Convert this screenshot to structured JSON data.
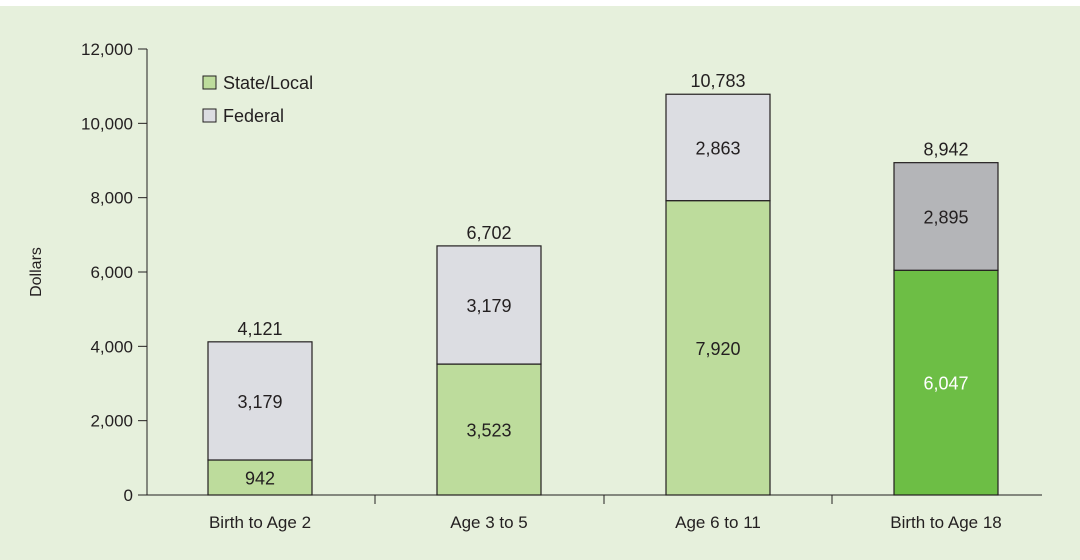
{
  "chart_data": {
    "type": "bar",
    "stacked": true,
    "title": "",
    "xlabel": "",
    "ylabel": "Dollars",
    "ylim": [
      0,
      12000
    ],
    "yticks": [
      0,
      2000,
      4000,
      6000,
      8000,
      10000,
      12000
    ],
    "ytick_labels": [
      "0",
      "2,000",
      "4,000",
      "6,000",
      "8,000",
      "10,000",
      "12,000"
    ],
    "grid": false,
    "legend": {
      "position": "top-left",
      "entries": [
        "State/Local",
        "Federal"
      ]
    },
    "categories": [
      "Birth to Age 2",
      "Age 3 to 5",
      "Age 6 to 11",
      "Birth to Age 18"
    ],
    "series": [
      {
        "name": "State/Local",
        "values": [
          942,
          3523,
          7920,
          6047
        ],
        "labels": [
          "942",
          "3,523",
          "7,920",
          "6,047"
        ],
        "color": "#bddc9c",
        "highlight_color": "#6dbe45"
      },
      {
        "name": "Federal",
        "values": [
          3179,
          3179,
          2863,
          2895
        ],
        "labels": [
          "3,179",
          "3,179",
          "2,863",
          "2,895"
        ],
        "color": "#dcdde2",
        "highlight_color": "#b4b5b8"
      }
    ],
    "totals": [
      4121,
      6702,
      10783,
      8942
    ],
    "total_labels": [
      "4,121",
      "6,702",
      "10,783",
      "8,942"
    ],
    "highlighted_category": "Birth to Age 18"
  }
}
